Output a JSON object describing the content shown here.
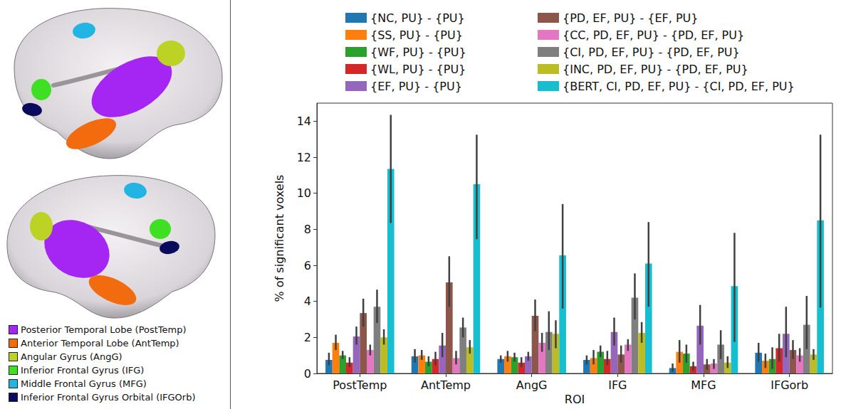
{
  "chart_data": {
    "type": "bar",
    "categories": [
      "PostTemp",
      "AntTemp",
      "AngG",
      "IFG",
      "MFG",
      "IFGorb"
    ],
    "xlabel": "ROI",
    "ylabel": "% of significant voxels",
    "ylim": [
      0,
      15
    ],
    "yticks": [
      0,
      2,
      4,
      6,
      8,
      10,
      12,
      14
    ],
    "grid": false,
    "legend": "top",
    "series": [
      {
        "name": "{NC, PU} - {PU}",
        "color": "#1f77b4",
        "values": [
          0.75,
          0.95,
          0.8,
          0.75,
          0.3,
          1.15
        ],
        "error_low": [
          0.45,
          0.6,
          0.6,
          0.5,
          0.1,
          0.65
        ],
        "error_high": [
          1.15,
          1.35,
          1.0,
          1.0,
          0.55,
          1.7
        ]
      },
      {
        "name": "{SS, PU} - {PU}",
        "color": "#ff7f0e",
        "values": [
          1.7,
          1.0,
          0.95,
          0.85,
          1.2,
          0.7
        ],
        "error_low": [
          1.3,
          0.75,
          0.65,
          0.5,
          0.6,
          0.3
        ],
        "error_high": [
          2.15,
          1.3,
          1.25,
          1.3,
          1.85,
          1.1
        ]
      },
      {
        "name": "{WF, PU} - {PU}",
        "color": "#2ca02c",
        "values": [
          1.0,
          0.65,
          0.9,
          1.2,
          1.1,
          0.8
        ],
        "error_low": [
          0.8,
          0.4,
          0.65,
          0.9,
          0.6,
          0.25
        ],
        "error_high": [
          1.25,
          0.95,
          1.15,
          1.55,
          1.6,
          1.45
        ]
      },
      {
        "name": "{WL, PU} - {PU}",
        "color": "#d62728",
        "values": [
          0.6,
          0.8,
          0.6,
          0.8,
          0.4,
          1.4
        ],
        "error_low": [
          0.35,
          0.45,
          0.35,
          0.45,
          0.15,
          0.65
        ],
        "error_high": [
          0.9,
          1.2,
          0.9,
          1.25,
          0.65,
          2.2
        ]
      },
      {
        "name": "{EF, PU} - {PU}",
        "color": "#9467bd",
        "values": [
          2.05,
          1.55,
          0.95,
          2.3,
          2.65,
          2.2
        ],
        "error_low": [
          1.6,
          0.9,
          0.7,
          1.55,
          1.6,
          0.9
        ],
        "error_high": [
          2.6,
          2.25,
          1.2,
          3.1,
          3.8,
          3.7
        ]
      },
      {
        "name": "{PD, EF, PU} - {EF, PU}",
        "color": "#8c564b",
        "values": [
          3.35,
          5.05,
          3.2,
          1.05,
          0.5,
          1.3
        ],
        "error_low": [
          2.6,
          3.7,
          2.35,
          0.6,
          0.2,
          0.8
        ],
        "error_high": [
          4.15,
          6.5,
          4.1,
          1.55,
          0.8,
          1.85
        ]
      },
      {
        "name": "{CC, PD, EF, PU} - {PD, EF, PU}",
        "color": "#e377c2",
        "values": [
          1.3,
          0.85,
          1.7,
          1.6,
          0.55,
          1.0
        ],
        "error_low": [
          1.0,
          0.5,
          1.2,
          1.25,
          0.25,
          0.65
        ],
        "error_high": [
          1.6,
          1.25,
          2.25,
          1.9,
          0.8,
          1.4
        ]
      },
      {
        "name": "{CI, PD, EF, PU} - {PD, EF, PU}",
        "color": "#7f7f7f",
        "values": [
          3.7,
          2.55,
          2.3,
          4.2,
          1.6,
          2.7
        ],
        "error_low": [
          2.8,
          2.0,
          1.3,
          3.0,
          0.8,
          1.35
        ],
        "error_high": [
          4.65,
          3.1,
          3.45,
          5.55,
          2.4,
          4.3
        ]
      },
      {
        "name": "{INC, PD, EF, PU} - {PD, EF, PU}",
        "color": "#bcbd22",
        "values": [
          2.0,
          1.45,
          2.2,
          2.25,
          0.6,
          1.05
        ],
        "error_low": [
          1.6,
          1.1,
          1.4,
          1.7,
          0.3,
          0.75
        ],
        "error_high": [
          2.45,
          1.85,
          2.95,
          2.85,
          0.95,
          1.35
        ]
      },
      {
        "name": "{BERT, CI, PD, EF, PU} - {CI, PD, EF, PU}",
        "color": "#17becf",
        "values": [
          11.35,
          10.5,
          6.55,
          6.1,
          4.85,
          8.5
        ],
        "error_low": [
          8.35,
          7.45,
          3.6,
          3.7,
          1.75,
          3.65
        ],
        "error_high": [
          14.35,
          13.25,
          9.4,
          8.4,
          7.8,
          13.25
        ]
      }
    ]
  },
  "roi_legend": [
    {
      "label": "Posterior Temporal Lobe (PostTemp)",
      "color": "#a526f2"
    },
    {
      "label": "Anterior Temporal Lobe (AntTemp)",
      "color": "#f26b0f"
    },
    {
      "label": "Angular Gyrus (AngG)",
      "color": "#bcd325"
    },
    {
      "label": "Inferior Frontal Gyrus (IFG)",
      "color": "#3fe024"
    },
    {
      "label": "Middle Frontal Gyrus (MFG)",
      "color": "#22b4e3"
    },
    {
      "label": "Inferior Frontal Gyrus Orbital (IFGOrb)",
      "color": "#0b0b5e"
    }
  ]
}
